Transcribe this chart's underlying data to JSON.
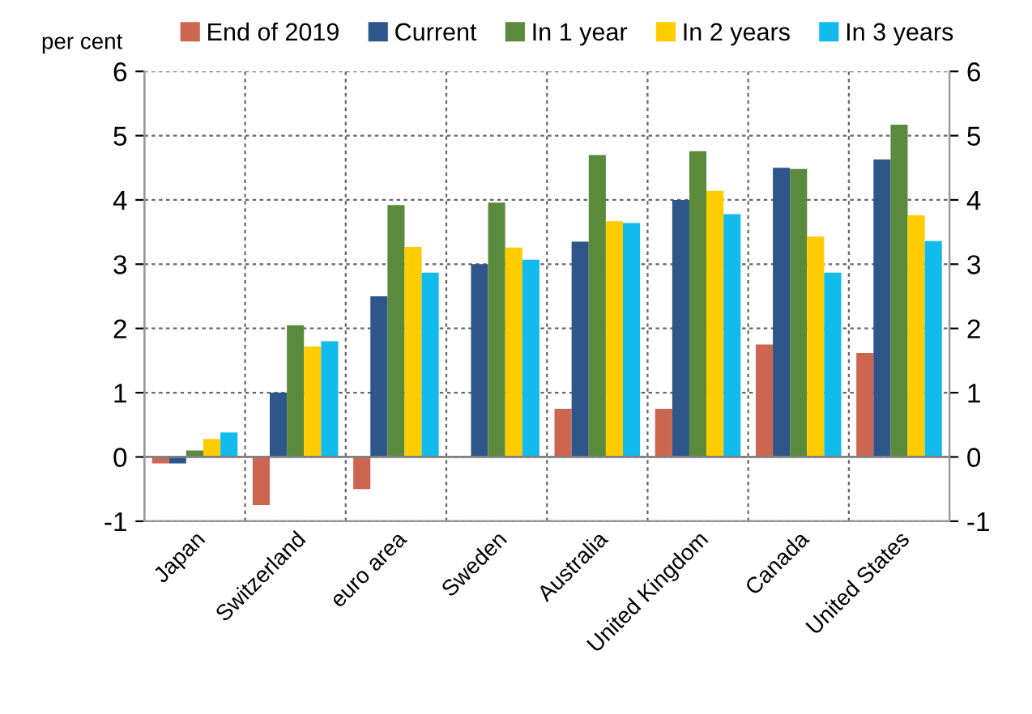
{
  "chart_data": {
    "type": "bar",
    "ylabel": "per cent",
    "categories": [
      "Japan",
      "Switzerland",
      "euro area",
      "Sweden",
      "Australia",
      "United Kingdom",
      "Canada",
      "United States"
    ],
    "series": [
      {
        "name": "End of 2019",
        "color": "#cd6650",
        "values": [
          -0.1,
          -0.75,
          -0.5,
          0,
          0.75,
          0.75,
          1.75,
          1.62
        ]
      },
      {
        "name": "Current",
        "color": "#2e568a",
        "values": [
          -0.1,
          1.0,
          2.5,
          3.0,
          3.35,
          4.0,
          4.5,
          4.63
        ]
      },
      {
        "name": "In 1 year",
        "color": "#5a8a3c",
        "values": [
          0.1,
          2.05,
          3.92,
          3.96,
          4.7,
          4.76,
          4.48,
          5.17
        ]
      },
      {
        "name": "In 2 years",
        "color": "#ffcc00",
        "values": [
          0.28,
          1.72,
          3.27,
          3.26,
          3.67,
          4.14,
          3.43,
          3.76
        ]
      },
      {
        "name": "In 3 years",
        "color": "#12bbee",
        "values": [
          0.38,
          1.8,
          2.87,
          3.07,
          3.64,
          3.78,
          2.87,
          3.36
        ]
      }
    ],
    "ylim": [
      -1,
      6
    ],
    "yticks": [
      -1,
      0,
      1,
      2,
      3,
      4,
      5,
      6
    ],
    "y2lim": [
      -1,
      6
    ],
    "y2ticks": [
      -1,
      0,
      1,
      2,
      3,
      4,
      5,
      6
    ],
    "grid": true,
    "legend": "top"
  }
}
